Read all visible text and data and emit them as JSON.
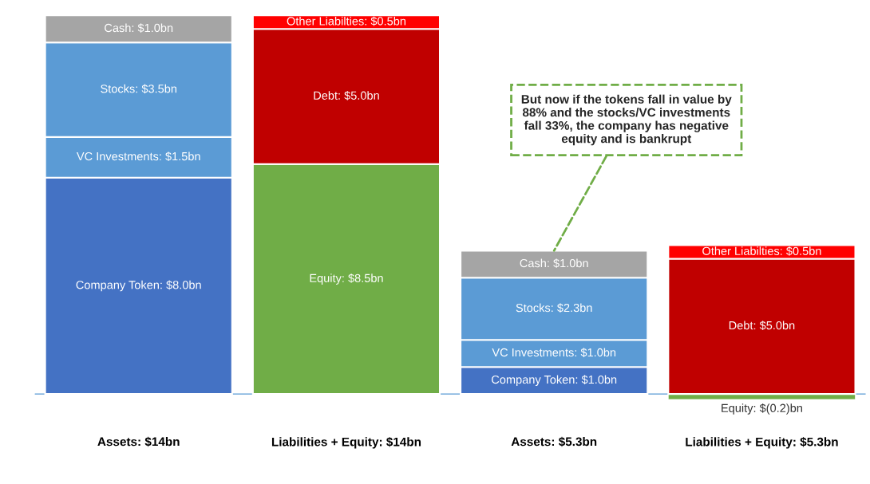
{
  "chart_data": {
    "type": "bar",
    "stacked": true,
    "categories": [
      "Assets: $14bn",
      "Liabilities + Equity: $14bn",
      "Assets: $5.3bn",
      "Liabilities + Equity: $5.3bn"
    ],
    "series": [
      {
        "color": "#4472c4",
        "values": [
          8.0,
          null,
          1.0,
          null
        ],
        "value_labels": [
          "Company Token: $8.0bn",
          null,
          "Company Token: $1.0bn",
          null
        ]
      },
      {
        "color": "#5b9bd5",
        "values": [
          1.5,
          null,
          1.0,
          null
        ],
        "value_labels": [
          "VC Investments: $1.5bn",
          null,
          "VC Investments: $1.0bn",
          null
        ]
      },
      {
        "color": "#5b9bd5",
        "values": [
          3.5,
          null,
          2.3,
          null
        ],
        "value_labels": [
          "Stocks: $3.5bn",
          null,
          "Stocks: $2.3bn",
          null
        ]
      },
      {
        "color": "#a5a5a5",
        "values": [
          1.0,
          null,
          1.0,
          null
        ],
        "value_labels": [
          "Cash: $1.0bn",
          null,
          "Cash: $1.0bn",
          null
        ]
      },
      {
        "color": "#70ad47",
        "values": [
          null,
          8.5,
          null,
          -0.2
        ],
        "value_labels": [
          null,
          "Equity: $8.5bn",
          null,
          "Equity: $(0.2)bn"
        ]
      },
      {
        "color": "#c00000",
        "values": [
          null,
          5.0,
          null,
          5.0
        ],
        "value_labels": [
          null,
          "Debt: $5.0bn",
          null,
          "Debt: $5.0bn"
        ]
      },
      {
        "color": "#ff0000",
        "values": [
          null,
          0.5,
          null,
          0.5
        ],
        "value_labels": [
          null,
          "Other Liabilties: $0.5bn",
          null,
          "Other Liabilties: $0.5bn"
        ]
      }
    ],
    "ref_lines": [
      {
        "axis": "y",
        "value": 0,
        "color": "#5b9bd5"
      }
    ],
    "annotations": [
      {
        "text": "But now if the tokens fall in value by 88% and the stocks/VC investments fall 33%, the company has negative equity and is bankrupt",
        "x": "Assets: $5.3bn",
        "y": 5.3
      }
    ]
  }
}
